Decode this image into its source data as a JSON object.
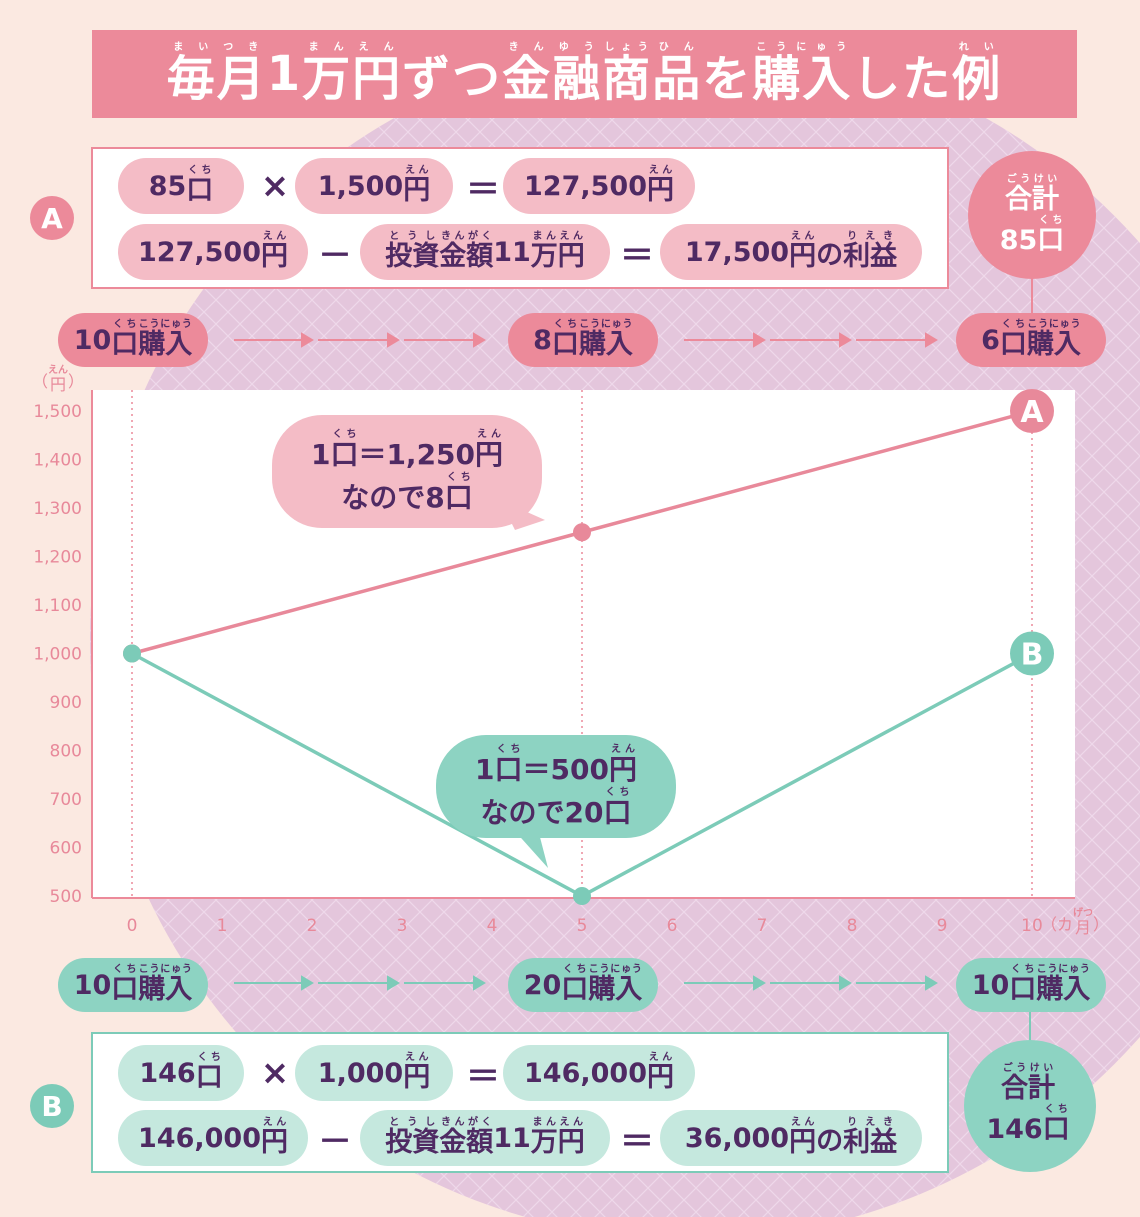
{
  "title": [
    {
      "b": "毎",
      "r": "まい"
    },
    {
      "b": "月",
      "r": "つき"
    },
    "1",
    {
      "b": "万",
      "r": "まん"
    },
    {
      "b": "円",
      "r": "えん"
    },
    "ずつ",
    {
      "b": "金",
      "r": "きん"
    },
    {
      "b": "融",
      "r": "ゆう"
    },
    {
      "b": "商",
      "r": "しょう"
    },
    {
      "b": "品",
      "r": "ひん"
    },
    "を",
    {
      "b": "購入",
      "r": "こうにゅう"
    },
    "した",
    {
      "b": "例",
      "r": "れい"
    }
  ],
  "panels": [
    {
      "label": "A",
      "row1": [
        [
          "85",
          {
            "b": "口",
            "r": "くち"
          }
        ],
        [
          "×"
        ],
        [
          "1,500",
          {
            "b": "円",
            "r": "えん"
          }
        ],
        [
          "＝"
        ],
        [
          "127,500",
          {
            "b": "円",
            "r": "えん"
          }
        ]
      ],
      "row2": [
        [
          "127,500",
          {
            "b": "円",
            "r": "えん"
          }
        ],
        [
          "－"
        ],
        [
          {
            "b": "投資",
            "r": "とうし"
          },
          {
            "b": "金額",
            "r": "きんがく"
          },
          "11",
          {
            "b": "万円",
            "r": "まんえん"
          }
        ],
        [
          "＝"
        ],
        [
          "17,500",
          {
            "b": "円",
            "r": "えん"
          },
          "の",
          {
            "b": "利益",
            "r": "りえき"
          }
        ]
      ],
      "total": [
        [
          {
            "b": "合計",
            "r": "ごうけい"
          }
        ],
        [
          "85",
          {
            "b": "口",
            "r": "くち"
          }
        ]
      ],
      "purchases": [
        [
          "10",
          {
            "b": "口",
            "r": "くち"
          },
          {
            "b": "購入",
            "r": "こうにゅう"
          }
        ],
        [
          "8",
          {
            "b": "口",
            "r": "くち"
          },
          {
            "b": "購入",
            "r": "こうにゅう"
          }
        ],
        [
          "6",
          {
            "b": "口",
            "r": "くち"
          },
          {
            "b": "購入",
            "r": "こうにゅう"
          }
        ]
      ]
    },
    {
      "label": "B",
      "row1": [
        [
          "146",
          {
            "b": "口",
            "r": "くち"
          }
        ],
        [
          "×"
        ],
        [
          "1,000",
          {
            "b": "円",
            "r": "えん"
          }
        ],
        [
          "＝"
        ],
        [
          "146,000",
          {
            "b": "円",
            "r": "えん"
          }
        ]
      ],
      "row2": [
        [
          "146,000",
          {
            "b": "円",
            "r": "えん"
          }
        ],
        [
          "－"
        ],
        [
          {
            "b": "投資",
            "r": "とうし"
          },
          {
            "b": "金額",
            "r": "きんがく"
          },
          "11",
          {
            "b": "万円",
            "r": "まんえん"
          }
        ],
        [
          "＝"
        ],
        [
          "36,000",
          {
            "b": "円",
            "r": "えん"
          },
          "の",
          {
            "b": "利益",
            "r": "りえき"
          }
        ]
      ],
      "total": [
        [
          {
            "b": "合計",
            "r": "ごうけい"
          }
        ],
        [
          "146",
          {
            "b": "口",
            "r": "くち"
          }
        ]
      ],
      "purchases": [
        [
          "10",
          {
            "b": "口",
            "r": "くち"
          },
          {
            "b": "購入",
            "r": "こうにゅう"
          }
        ],
        [
          "20",
          {
            "b": "口",
            "r": "くち"
          },
          {
            "b": "購入",
            "r": "こうにゅう"
          }
        ],
        [
          "10",
          {
            "b": "口",
            "r": "くち"
          },
          {
            "b": "購入",
            "r": "こうにゅう"
          }
        ]
      ]
    }
  ],
  "chart_data": {
    "type": "line",
    "x": [
      0,
      5,
      10
    ],
    "series": [
      {
        "name": "A",
        "color": "#e8899a",
        "values": [
          1000,
          1250,
          1500
        ]
      },
      {
        "name": "B",
        "color": "#7ccbb8",
        "values": [
          1000,
          500,
          1000
        ]
      }
    ],
    "xlim": [
      0,
      10
    ],
    "xticks": [
      0,
      1,
      2,
      3,
      4,
      5,
      6,
      7,
      8,
      9,
      10
    ],
    "x_unit": [
      "（カ",
      {
        "b": "月",
        "r": "げつ"
      },
      "）"
    ],
    "x_markers": [
      0,
      5,
      10
    ],
    "ylim": [
      500,
      1500
    ],
    "yticks": [
      500,
      600,
      700,
      800,
      900,
      {
        "value": 1000,
        "label": "1,000"
      },
      {
        "value": 1100,
        "label": "1,100"
      },
      {
        "value": 1200,
        "label": "1,200"
      },
      {
        "value": 1300,
        "label": "1,300"
      },
      {
        "value": 1400,
        "label": "1,400"
      },
      {
        "value": 1500,
        "label": "1,500"
      }
    ],
    "y_unit": [
      "（",
      {
        "b": "円",
        "r": "えん"
      },
      "）"
    ],
    "annotations": [
      {
        "lines": [
          [
            "1",
            {
              "b": "口",
              "r": "くち"
            },
            "＝1,250",
            {
              "b": "円",
              "r": "えん"
            }
          ],
          [
            "なので8",
            {
              "b": "口",
              "r": "くち"
            }
          ]
        ]
      },
      {
        "lines": [
          [
            "1",
            {
              "b": "口",
              "r": "くち"
            },
            "＝500",
            {
              "b": "円",
              "r": "えん"
            }
          ],
          [
            "なので20",
            {
              "b": "口",
              "r": "くち"
            }
          ]
        ]
      }
    ]
  }
}
